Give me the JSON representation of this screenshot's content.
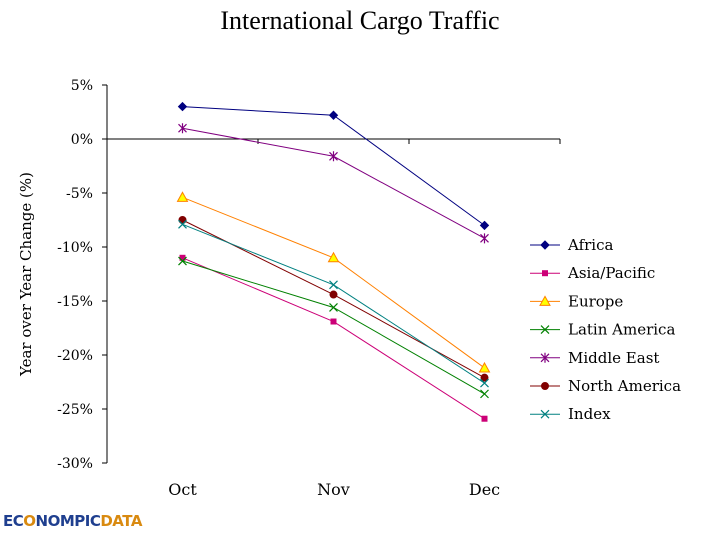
{
  "chart_data": {
    "type": "line",
    "title": "International Cargo Traffic",
    "ylabel": "Year over Year Change (%)",
    "xlabel": "",
    "categories": [
      "Oct",
      "Nov",
      "Dec"
    ],
    "ylim": [
      -30,
      5
    ],
    "yticks": [
      5,
      0,
      -5,
      -10,
      -15,
      -20,
      -25,
      -30
    ],
    "ytick_labels": [
      "5%",
      "0%",
      "-5%",
      "-10%",
      "-15%",
      "-20%",
      "-25%",
      "-30%"
    ],
    "grid": false,
    "legend_position": "right",
    "series": [
      {
        "name": "Africa",
        "values": [
          3.0,
          2.2,
          -8.0
        ],
        "color": "#000080",
        "marker": "diamond"
      },
      {
        "name": "Asia/Pacific",
        "values": [
          -11.0,
          -16.9,
          -25.9
        ],
        "color": "#cc0077",
        "marker": "square"
      },
      {
        "name": "Europe",
        "values": [
          -5.4,
          -11.0,
          -21.2
        ],
        "color": "#ff8000",
        "marker": "triangle"
      },
      {
        "name": "Latin America",
        "values": [
          -11.3,
          -15.6,
          -23.6
        ],
        "color": "#008000",
        "marker": "x"
      },
      {
        "name": "Middle East",
        "values": [
          1.0,
          -1.6,
          -9.2
        ],
        "color": "#800080",
        "marker": "star"
      },
      {
        "name": "North America",
        "values": [
          -7.5,
          -14.4,
          -22.1
        ],
        "color": "#800000",
        "marker": "circle"
      },
      {
        "name": "Index",
        "values": [
          -7.9,
          -13.5,
          -22.6
        ],
        "color": "#008080",
        "marker": "x"
      }
    ]
  },
  "logo": {
    "part1": "EC",
    "part2": "NOMPIC",
    "part3": "DATA",
    "o": "O"
  }
}
